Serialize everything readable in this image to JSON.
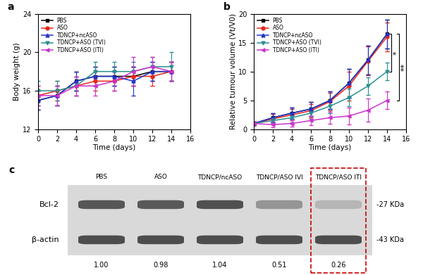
{
  "chart_data": [
    {
      "type": "line",
      "title": "a",
      "x_label": "Time (days)",
      "y_label": "Body weight (g)",
      "x": [
        0,
        2,
        4,
        6,
        8,
        10,
        12,
        14
      ],
      "xlim": [
        0,
        16
      ],
      "xticks": [
        0,
        2,
        4,
        6,
        8,
        10,
        12,
        14,
        16
      ],
      "ylim": [
        12,
        24
      ],
      "yticks": [
        12,
        16,
        20,
        24
      ],
      "legend": "upper left",
      "series": [
        {
          "name": "PBS",
          "color": "#000000",
          "marker": "s",
          "values": [
            15,
            15.5,
            17,
            17.5,
            17.5,
            17.5,
            18,
            18
          ],
          "errors": [
            1,
            1,
            1,
            1,
            1,
            1,
            1,
            1
          ]
        },
        {
          "name": "ASO",
          "color": "#e8261c",
          "marker": "o",
          "values": [
            15.5,
            16,
            16.5,
            17,
            17,
            17.5,
            17.5,
            18
          ],
          "errors": [
            1,
            1,
            1,
            1,
            1,
            1,
            1,
            1
          ]
        },
        {
          "name": "TDNCP+ncASO",
          "color": "#2233cc",
          "marker": "^",
          "values": [
            15,
            15.5,
            17,
            17.5,
            17.5,
            17,
            18,
            18
          ],
          "errors": [
            1,
            1,
            1,
            1,
            1,
            1.5,
            1,
            1
          ]
        },
        {
          "name": "TDNCP+ASO (TVI)",
          "color": "#2a9090",
          "marker": "v",
          "values": [
            16,
            16,
            16.5,
            18,
            18,
            18,
            18.5,
            18.5
          ],
          "errors": [
            1,
            1,
            1,
            1,
            1,
            1,
            1,
            1.5
          ]
        },
        {
          "name": "TDNCP+ASO (ITI)",
          "color": "#cc33cc",
          "marker": "<",
          "values": [
            15.5,
            15.5,
            16.5,
            16.5,
            17,
            18,
            18.5,
            18
          ],
          "errors": [
            1,
            1,
            1,
            1,
            1,
            1.5,
            1,
            1
          ]
        }
      ]
    },
    {
      "type": "line",
      "title": "b",
      "x_label": "Time (days)",
      "y_label": "Relative tumour volume (Vt/V0)",
      "x": [
        0,
        2,
        4,
        6,
        8,
        10,
        12,
        14
      ],
      "xlim": [
        0,
        16
      ],
      "xticks": [
        0,
        2,
        4,
        6,
        8,
        10,
        12,
        14,
        16
      ],
      "ylim": [
        0,
        20
      ],
      "yticks": [
        0,
        5,
        10,
        15,
        20
      ],
      "legend": "upper left",
      "series": [
        {
          "name": "PBS",
          "color": "#000000",
          "marker": "s",
          "values": [
            1,
            2,
            2.8,
            3.5,
            5,
            8,
            12,
            16.5
          ],
          "errors": [
            0.3,
            0.8,
            1,
            1.2,
            1.5,
            2.5,
            2.5,
            2.5
          ]
        },
        {
          "name": "ASO",
          "color": "#e8261c",
          "marker": "o",
          "values": [
            1,
            1.8,
            2.5,
            3.2,
            4.8,
            7.5,
            11.8,
            16
          ],
          "errors": [
            0.3,
            0.8,
            1,
            1.2,
            1.5,
            2.5,
            2.5,
            2.5
          ]
        },
        {
          "name": "TDNCP+ncASO",
          "color": "#2233cc",
          "marker": "^",
          "values": [
            1,
            2,
            2.8,
            3.5,
            5,
            8,
            12,
            16.5
          ],
          "errors": [
            0.3,
            0.8,
            1,
            1.2,
            1.5,
            2.5,
            2.5,
            2.5
          ]
        },
        {
          "name": "TDNCP+ASO (TVI)",
          "color": "#2a9090",
          "marker": "v",
          "values": [
            1,
            1.5,
            2,
            2.8,
            4,
            5.5,
            7.5,
            10
          ],
          "errors": [
            0.3,
            0.6,
            0.8,
            1,
            1.2,
            1.5,
            1.5,
            1.5
          ]
        },
        {
          "name": "TDNCP+ASO (ITI)",
          "color": "#cc33cc",
          "marker": "<",
          "values": [
            1,
            0.8,
            1,
            1.5,
            2,
            2.3,
            3.3,
            5
          ],
          "errors": [
            0.3,
            0.5,
            0.6,
            0.8,
            1,
            1.5,
            2,
            1.5
          ]
        }
      ],
      "annotations": [
        {
          "text": "*",
          "from": "TDNCP+ASO (TVI)",
          "to": "PBS"
        },
        {
          "text": "**",
          "from": "TDNCP+ASO (ITI)",
          "to": "PBS"
        }
      ]
    }
  ],
  "western_blot": {
    "title": "c",
    "lanes": [
      "PBS",
      "ASO",
      "TDNCP/ncASO",
      "TDNCP/ASO IVI",
      "TDNCP/ASO ITI"
    ],
    "rows": [
      {
        "label": "Bcl-2",
        "size": "-27 KDa"
      },
      {
        "label": "β-actin",
        "size": "-43 KDa"
      }
    ],
    "relative_expression": [
      {
        "value": 1.0,
        "label": "1.00"
      },
      {
        "value": 0.98,
        "label": "0.98"
      },
      {
        "value": 1.04,
        "label": "1.04"
      },
      {
        "value": 0.51,
        "label": "0.51"
      },
      {
        "value": 0.26,
        "label": "0.26"
      }
    ]
  }
}
